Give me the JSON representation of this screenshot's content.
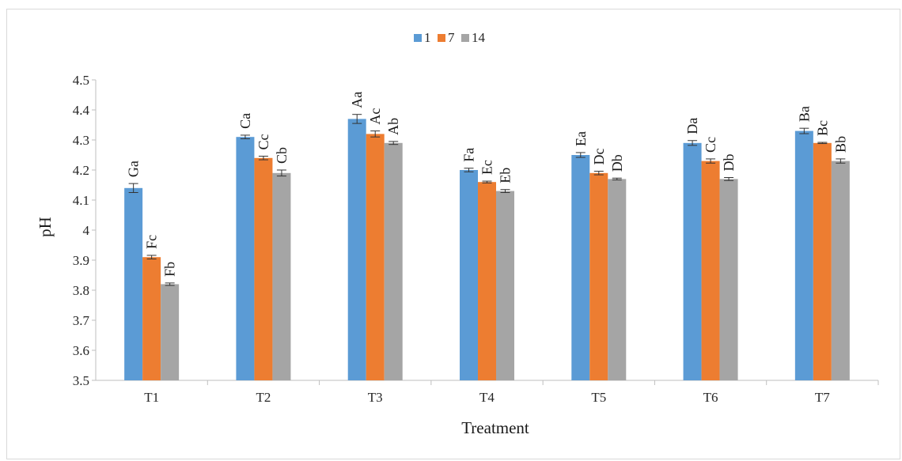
{
  "chart_data": {
    "type": "bar",
    "title": "",
    "xlabel": "Treatment",
    "ylabel": "pH",
    "ylim": [
      3.5,
      4.5
    ],
    "yticks": [
      "3.5",
      "3.6",
      "3.7",
      "3.8",
      "3.9",
      "4",
      "4.1",
      "4.2",
      "4.3",
      "4.4",
      "4.5"
    ],
    "grid": false,
    "legend_position": "top",
    "categories": [
      "T1",
      "T2",
      "T3",
      "T4",
      "T5",
      "T6",
      "T7"
    ],
    "series": [
      {
        "name": "1",
        "color": "#5b9bd5",
        "values": [
          4.14,
          4.31,
          4.37,
          4.2,
          4.25,
          4.29,
          4.33
        ],
        "errors": [
          0.015,
          0.006,
          0.015,
          0.006,
          0.008,
          0.008,
          0.009
        ],
        "labels": [
          "Ga",
          "Ca",
          "Aa",
          "Fa",
          "Ea",
          "Da",
          "Ba"
        ]
      },
      {
        "name": "7",
        "color": "#ed7d31",
        "values": [
          3.91,
          4.24,
          4.32,
          4.16,
          4.19,
          4.23,
          4.29
        ],
        "errors": [
          0.006,
          0.006,
          0.01,
          0.003,
          0.006,
          0.007,
          0.002
        ],
        "labels": [
          "Fc",
          "Cc",
          "Ac",
          "Ec",
          "Dc",
          "Cc",
          "Bc"
        ]
      },
      {
        "name": "14",
        "color": "#a5a5a5",
        "values": [
          3.82,
          4.19,
          4.29,
          4.13,
          4.17,
          4.17,
          4.23
        ],
        "errors": [
          0.004,
          0.01,
          0.005,
          0.005,
          0.003,
          0.005,
          0.007
        ],
        "labels": [
          "Fb",
          "Cb",
          "Ab",
          "Eb",
          "Db",
          "Db",
          "Bb"
        ]
      }
    ]
  }
}
